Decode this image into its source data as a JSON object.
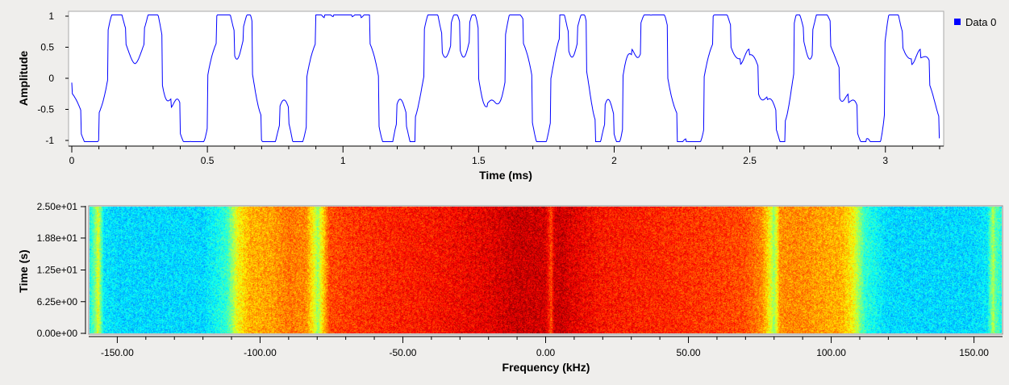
{
  "chart_data": [
    {
      "type": "line",
      "title": "",
      "xlabel": "Time (ms)",
      "ylabel": "Amplitude",
      "xlim": [
        0,
        3.2
      ],
      "ylim": [
        -1.05,
        1.05
      ],
      "xticks": [
        0,
        0.5,
        1,
        1.5,
        2,
        2.5,
        3
      ],
      "xtick_labels": [
        "0",
        "0.5",
        "1",
        "1.5",
        "2",
        "2.5",
        "3"
      ],
      "yticks": [
        1,
        0.5,
        0,
        -0.5,
        -1
      ],
      "ytick_labels": [
        "1",
        "0.5",
        "0",
        "-0.5",
        "-1"
      ],
      "legend": "right",
      "series": [
        {
          "name": "Data 0",
          "color": "#0000ff",
          "symbol_interval_ms": 0.0333,
          "symbol_levels": [
            -0.333,
            -1,
            -1,
            -0.333,
            1,
            1,
            0.333,
            0.333,
            1,
            1,
            -0.333,
            -0.333,
            -1,
            -1,
            -1,
            0.333,
            1,
            1,
            0.333,
            1,
            -0.333,
            -1,
            -1,
            -0.333,
            -1,
            -1,
            0.333,
            1,
            1,
            1,
            1,
            1,
            1,
            0.333,
            -1,
            -1,
            -0.333,
            -1,
            -0.333,
            1,
            1,
            0.333,
            1,
            0.333,
            1,
            -0.333,
            -0.333,
            -0.333,
            1,
            1,
            0.333,
            -1,
            -1,
            0.333,
            1,
            0.333,
            1,
            -0.333,
            -1,
            -0.333,
            -1,
            0.333,
            0.333,
            1,
            1,
            1,
            -0.333,
            -1,
            -1,
            -1,
            0.333,
            1,
            1,
            0.333,
            0.333,
            0.333,
            -0.333,
            -0.333,
            -1,
            -0.333,
            1,
            0.333,
            1,
            1,
            0.333,
            -0.333,
            -0.333,
            -1,
            -1,
            -1,
            1,
            1,
            0.333,
            0.333,
            0.333,
            -0.333,
            -1,
            -0.333,
            0.333
          ]
        }
      ]
    },
    {
      "type": "heatmap",
      "title": "",
      "xlabel": "Frequency (kHz)",
      "ylabel": "Time (s)",
      "xlim": [
        -160,
        160
      ],
      "ylim": [
        0,
        25
      ],
      "xticks": [
        -150,
        -100,
        -50,
        0,
        50,
        100,
        150
      ],
      "xtick_labels": [
        "-150.00",
        "-100.00",
        "-50.00",
        "0.00",
        "50.00",
        "100.00",
        "150.00"
      ],
      "yticks": [
        25,
        18.8,
        12.5,
        6.25,
        0
      ],
      "ytick_labels": [
        "2.50e+01",
        "1.88e+01",
        "1.25e+01",
        "6.25e+00",
        "0.00e+00"
      ],
      "colormap": "jet",
      "profile_khz": [
        -160,
        -158,
        -157,
        -155,
        -150,
        -120,
        -112,
        -108,
        -104,
        -96,
        -90,
        -84,
        -81,
        -80,
        -79,
        -76,
        -70,
        -60,
        -40,
        -20,
        -10,
        0,
        2,
        3,
        5,
        10,
        20,
        40,
        60,
        70,
        76,
        79,
        80,
        81,
        82,
        84,
        90,
        96,
        104,
        108,
        112,
        120,
        150,
        155,
        157,
        158,
        160
      ],
      "profile_level": [
        0.38,
        0.5,
        0.6,
        0.36,
        0.34,
        0.34,
        0.42,
        0.62,
        0.7,
        0.72,
        0.76,
        0.74,
        0.6,
        0.52,
        0.6,
        0.8,
        0.82,
        0.84,
        0.86,
        0.9,
        0.93,
        0.92,
        0.8,
        0.92,
        0.93,
        0.9,
        0.86,
        0.84,
        0.82,
        0.8,
        0.74,
        0.6,
        0.52,
        0.6,
        0.72,
        0.74,
        0.74,
        0.72,
        0.7,
        0.62,
        0.42,
        0.34,
        0.34,
        0.36,
        0.55,
        0.45,
        0.4
      ]
    }
  ]
}
